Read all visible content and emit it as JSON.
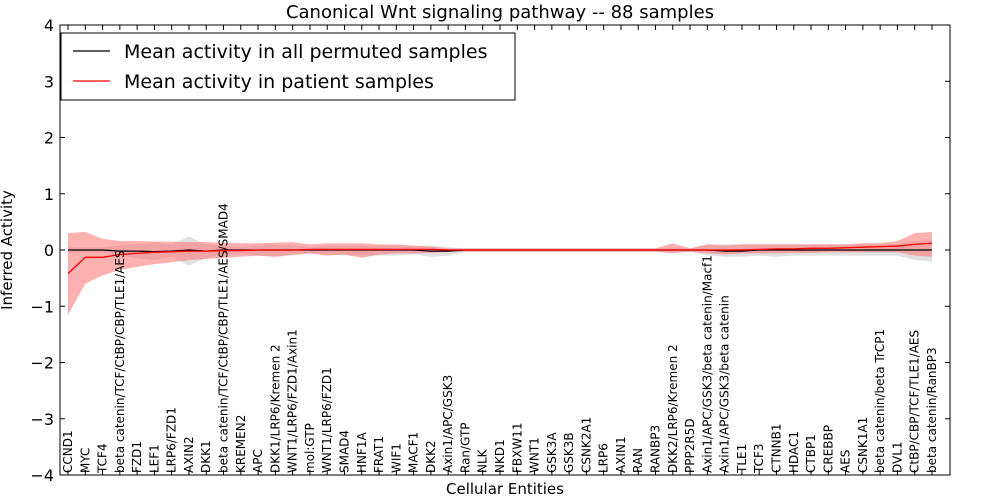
{
  "chart_data": {
    "type": "line",
    "title": "Canonical Wnt signaling pathway -- 88 samples",
    "xlabel": "Cellular Entities",
    "ylabel": "Inferred Activity",
    "ylim": [
      -4,
      4
    ],
    "yticks": [
      "4",
      "3",
      "2",
      "1",
      "0",
      "−1",
      "−2",
      "−3",
      "−4"
    ],
    "ytick_values": [
      4,
      3,
      2,
      1,
      0,
      -1,
      -2,
      -3,
      -4
    ],
    "legend_position": "top-left",
    "categories": [
      "CCND1",
      "MYC",
      "TCF4",
      "beta catenin/TCF/CtBP/CBP/TLE1/AES",
      "FZD1",
      "LEF1",
      "LRP6/FZD1",
      "AXIN2",
      "DKK1",
      "beta catenin/TCF/CtBP/CBP/TLE1/AES/SMAD4",
      "KREMEN2",
      "APC",
      "DKK1/LRP6/Kremen 2",
      "WNT1/LRP6/FZD1/Axin1",
      "mol:GTP",
      "WNT1/LRP6/FZD1",
      "SMAD4",
      "HNF1A",
      "FRAT1",
      "WIF1",
      "MACF1",
      "DKK2",
      "Axin1/APC/GSK3",
      "Ran/GTP",
      "NLK",
      "NKD1",
      "FBXW11",
      "WNT1",
      "GSK3A",
      "GSK3B",
      "CSNK2A1",
      "LRP6",
      "AXIN1",
      "RAN",
      "RANBP3",
      "DKK2/LRP6/Kremen 2",
      "PPP2R5D",
      "Axin1/APC/GSK3/beta catenin/Macf1",
      "Axin1/APC/GSK3/beta catenin",
      "TLE1",
      "TCF3",
      "CTNNB1",
      "HDAC1",
      "CTBP1",
      "CREBBP",
      "AES",
      "CSNK1A1",
      "beta catenin/beta TrCP1",
      "DVL1",
      "CtBP/CBP/TCF/TLE1/AES",
      "beta catenin/RanBP3"
    ],
    "series": [
      {
        "name": "Mean activity in all permuted samples",
        "color": "#000000",
        "band_color": "#bbbbbb",
        "values": [
          0.0,
          0.0,
          0.0,
          -0.02,
          -0.02,
          -0.03,
          -0.02,
          0.0,
          -0.02,
          0.0,
          0.0,
          0.0,
          0.0,
          0.0,
          0.0,
          0.0,
          0.0,
          0.0,
          0.0,
          0.0,
          0.0,
          -0.02,
          -0.02,
          0.0,
          0.0,
          0.0,
          0.0,
          0.0,
          0.0,
          0.0,
          0.0,
          0.0,
          0.0,
          0.0,
          0.0,
          0.0,
          0.0,
          0.0,
          -0.02,
          -0.02,
          0.0,
          0.0,
          0.0,
          0.0,
          0.0,
          0.0,
          0.0,
          0.0,
          0.0,
          0.0,
          0.0
        ],
        "lower": [
          -0.05,
          -0.05,
          -0.05,
          -0.1,
          -0.15,
          -0.18,
          -0.12,
          -0.28,
          -0.14,
          -0.08,
          -0.06,
          -0.1,
          -0.12,
          -0.1,
          -0.06,
          -0.08,
          -0.1,
          -0.1,
          -0.1,
          -0.1,
          -0.08,
          -0.12,
          -0.1,
          -0.03,
          -0.03,
          -0.03,
          -0.03,
          -0.03,
          -0.03,
          -0.03,
          -0.03,
          -0.03,
          -0.03,
          -0.03,
          -0.03,
          -0.06,
          -0.03,
          -0.1,
          -0.12,
          -0.12,
          -0.1,
          -0.12,
          -0.1,
          -0.1,
          -0.1,
          -0.1,
          -0.1,
          -0.1,
          -0.1,
          -0.18,
          -0.2
        ],
        "upper": [
          0.05,
          0.05,
          0.05,
          0.08,
          0.1,
          0.14,
          0.1,
          0.24,
          0.1,
          0.08,
          0.05,
          0.08,
          0.1,
          0.08,
          0.05,
          0.08,
          0.08,
          0.08,
          0.08,
          0.08,
          0.06,
          0.08,
          0.05,
          0.03,
          0.03,
          0.03,
          0.03,
          0.03,
          0.03,
          0.03,
          0.03,
          0.03,
          0.03,
          0.03,
          0.03,
          0.05,
          0.03,
          0.1,
          0.1,
          0.1,
          0.1,
          0.1,
          0.1,
          0.1,
          0.1,
          0.1,
          0.1,
          0.1,
          0.1,
          0.16,
          0.18
        ]
      },
      {
        "name": "Mean activity in patient samples",
        "color": "#ff0000",
        "band_color": "#ff6f6f",
        "values": [
          -0.42,
          -0.13,
          -0.13,
          -0.08,
          -0.06,
          -0.04,
          -0.03,
          -0.02,
          -0.02,
          -0.01,
          -0.01,
          0.0,
          0.0,
          0.0,
          0.01,
          0.01,
          0.01,
          0.01,
          0.01,
          0.01,
          0.01,
          0.01,
          0.0,
          0.0,
          0.0,
          0.0,
          0.0,
          0.0,
          0.0,
          0.0,
          0.0,
          0.0,
          0.0,
          0.0,
          0.0,
          0.0,
          0.0,
          0.0,
          0.0,
          0.0,
          0.01,
          0.02,
          0.02,
          0.03,
          0.03,
          0.04,
          0.05,
          0.06,
          0.07,
          0.1,
          0.12
        ],
        "lower": [
          -1.15,
          -0.6,
          -0.45,
          -0.35,
          -0.3,
          -0.25,
          -0.22,
          -0.18,
          -0.16,
          -0.14,
          -0.12,
          -0.1,
          -0.12,
          -0.08,
          -0.06,
          -0.1,
          -0.08,
          -0.14,
          -0.08,
          -0.06,
          -0.06,
          -0.05,
          -0.03,
          -0.03,
          -0.03,
          -0.03,
          -0.03,
          -0.03,
          -0.03,
          -0.03,
          -0.03,
          -0.03,
          -0.03,
          -0.03,
          -0.03,
          -0.05,
          -0.03,
          -0.06,
          -0.08,
          -0.06,
          -0.06,
          -0.06,
          -0.05,
          -0.05,
          -0.04,
          -0.04,
          -0.04,
          -0.04,
          -0.04,
          -0.1,
          -0.12
        ],
        "upper": [
          0.3,
          0.32,
          0.2,
          0.16,
          0.16,
          0.15,
          0.15,
          0.14,
          0.14,
          0.13,
          0.12,
          0.12,
          0.13,
          0.14,
          0.1,
          0.12,
          0.12,
          0.12,
          0.1,
          0.1,
          0.08,
          0.06,
          0.03,
          0.03,
          0.03,
          0.03,
          0.03,
          0.03,
          0.03,
          0.03,
          0.03,
          0.03,
          0.03,
          0.03,
          0.03,
          0.12,
          0.03,
          0.1,
          0.08,
          0.1,
          0.1,
          0.1,
          0.1,
          0.1,
          0.1,
          0.1,
          0.12,
          0.12,
          0.16,
          0.3,
          0.32
        ]
      }
    ]
  }
}
